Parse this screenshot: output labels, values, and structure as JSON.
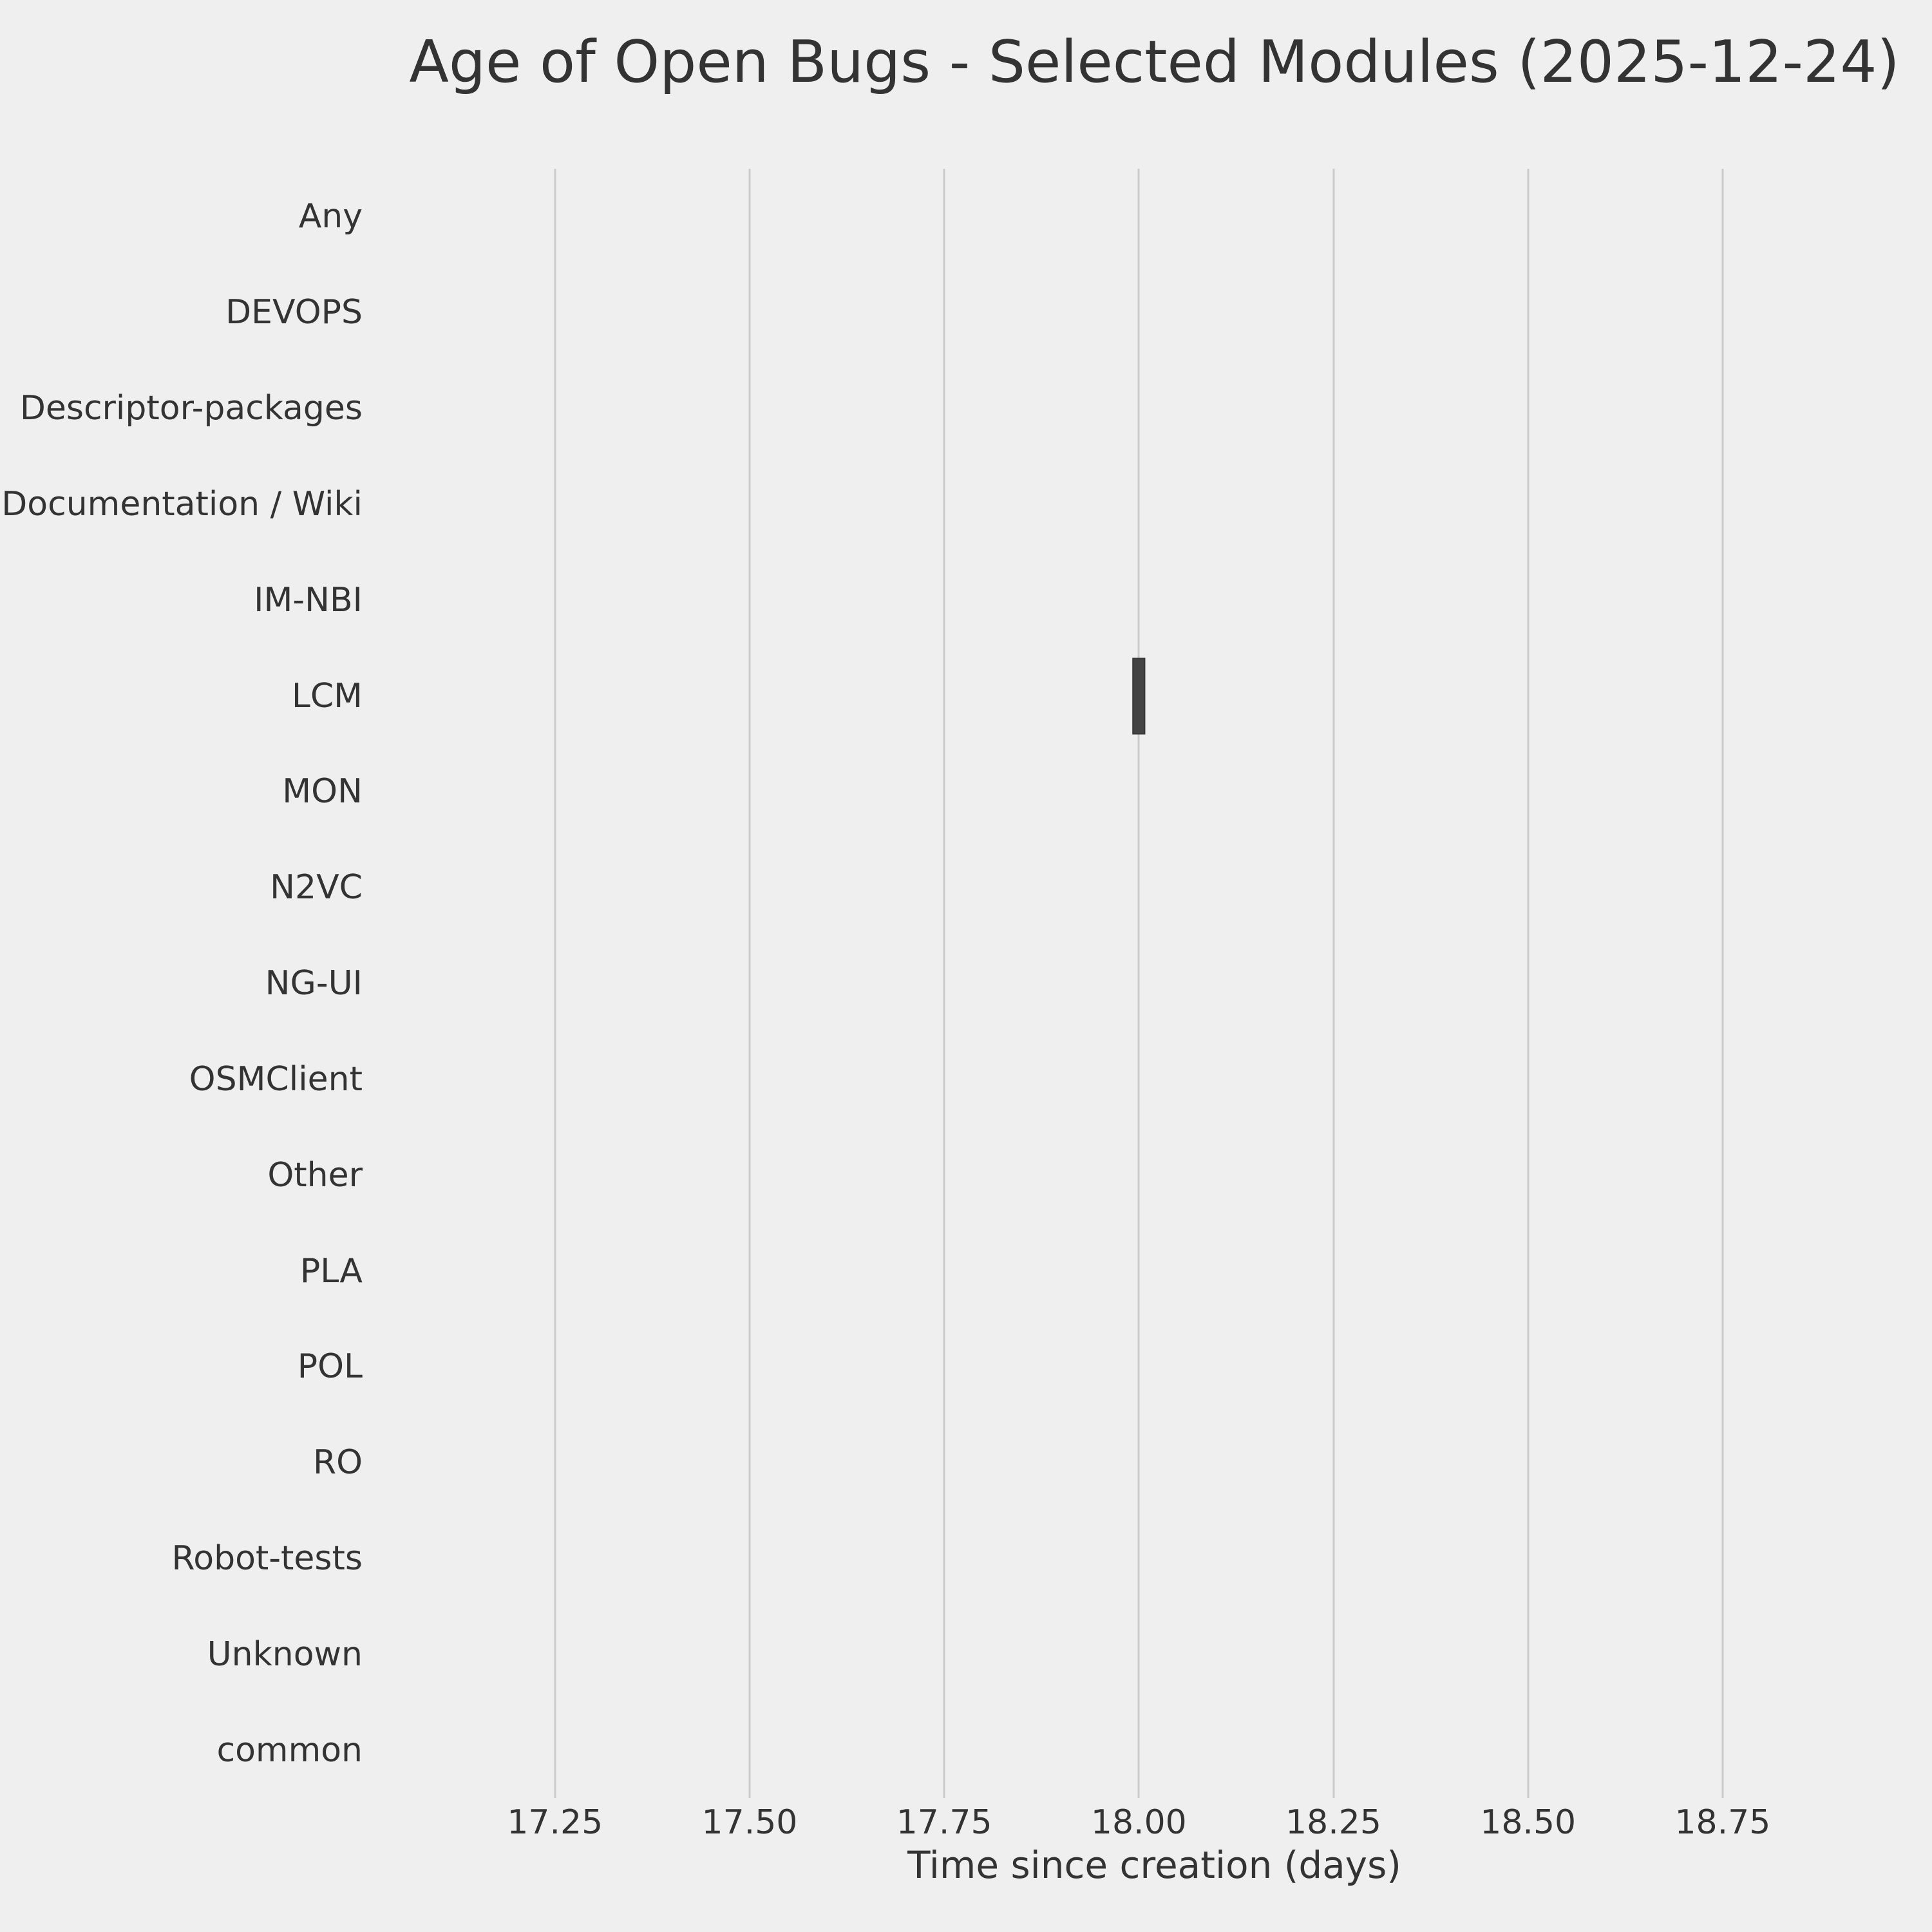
{
  "figure": {
    "background_color": "#efefef",
    "text_color": "#333333",
    "grid_color": "#cbcbcb",
    "box_fill_color": "#444444",
    "box_edge_color": "#383838"
  },
  "chart_data": {
    "type": "bar",
    "mark": "horizontal_boxplot",
    "title": "Age of Open Bugs - Selected Modules (2025-12-24)",
    "xlabel": "Time since creation (days)",
    "ylabel": "",
    "categories": [
      "Any",
      "DEVOPS",
      "Descriptor-packages",
      "Documentation / Wiki",
      "IM-NBI",
      "LCM",
      "MON",
      "N2VC",
      "NG-UI",
      "OSMClient",
      "Other",
      "PLA",
      "POL",
      "RO",
      "Robot-tests",
      "Unknown",
      "common"
    ],
    "xlim": [
      17.05,
      18.99
    ],
    "xtick_values": [
      17.25,
      17.5,
      17.75,
      18.0,
      18.25,
      18.5,
      18.75
    ],
    "xtick_labels": [
      "17.25",
      "17.50",
      "17.75",
      "18.00",
      "18.25",
      "18.50",
      "18.75"
    ],
    "grid": "vertical-only",
    "legend_position": "none",
    "boxes": [
      {
        "category": "LCM",
        "median": 18.0,
        "q1": 17.992,
        "q3": 18.008,
        "whisker_low": 17.992,
        "whisker_high": 18.008,
        "box_width_frac": 0.8
      }
    ],
    "series": [
      {
        "name": "LCM",
        "values": [
          18.0
        ]
      }
    ]
  }
}
